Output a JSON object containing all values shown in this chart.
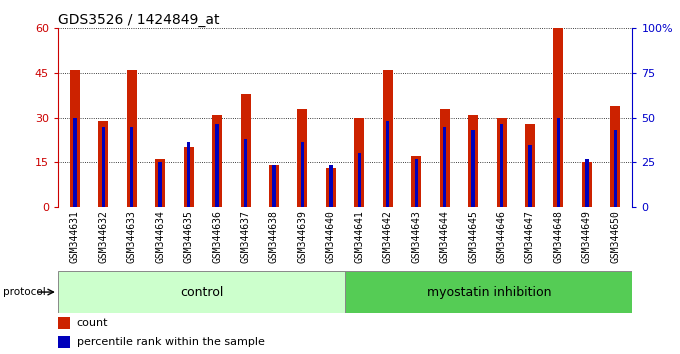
{
  "title": "GDS3526 / 1424849_at",
  "samples": [
    "GSM344631",
    "GSM344632",
    "GSM344633",
    "GSM344634",
    "GSM344635",
    "GSM344636",
    "GSM344637",
    "GSM344638",
    "GSM344639",
    "GSM344640",
    "GSM344641",
    "GSM344642",
    "GSM344643",
    "GSM344644",
    "GSM344645",
    "GSM344646",
    "GSM344647",
    "GSM344648",
    "GSM344649",
    "GSM344650"
  ],
  "count": [
    46,
    29,
    46,
    16,
    20,
    31,
    38,
    14,
    33,
    13,
    30,
    46,
    17,
    33,
    31,
    30,
    28,
    60,
    15,
    34
  ],
  "percentile": [
    30,
    27,
    27,
    15,
    22,
    28,
    23,
    14,
    22,
    14,
    18,
    29,
    16,
    27,
    26,
    28,
    21,
    30,
    16,
    26
  ],
  "control_label": "control",
  "treatment_label": "myostatin inhibition",
  "protocol_label": "protocol",
  "y_left_color": "#cc0000",
  "y_right_color": "#0000cc",
  "bar_color_red": "#cc2200",
  "bar_color_blue": "#0000bb",
  "ylim_left": [
    0,
    60
  ],
  "yticks_left": [
    0,
    15,
    30,
    45,
    60
  ],
  "ytick_labels_right": [
    "0",
    "25",
    "50",
    "75",
    "100%"
  ],
  "control_bg": "#ccffcc",
  "treatment_bg": "#55cc55",
  "xlabel_bg": "#d8d8d8",
  "title_fontsize": 10,
  "tick_fontsize": 7,
  "legend_fontsize": 8,
  "group_label_fontsize": 9
}
